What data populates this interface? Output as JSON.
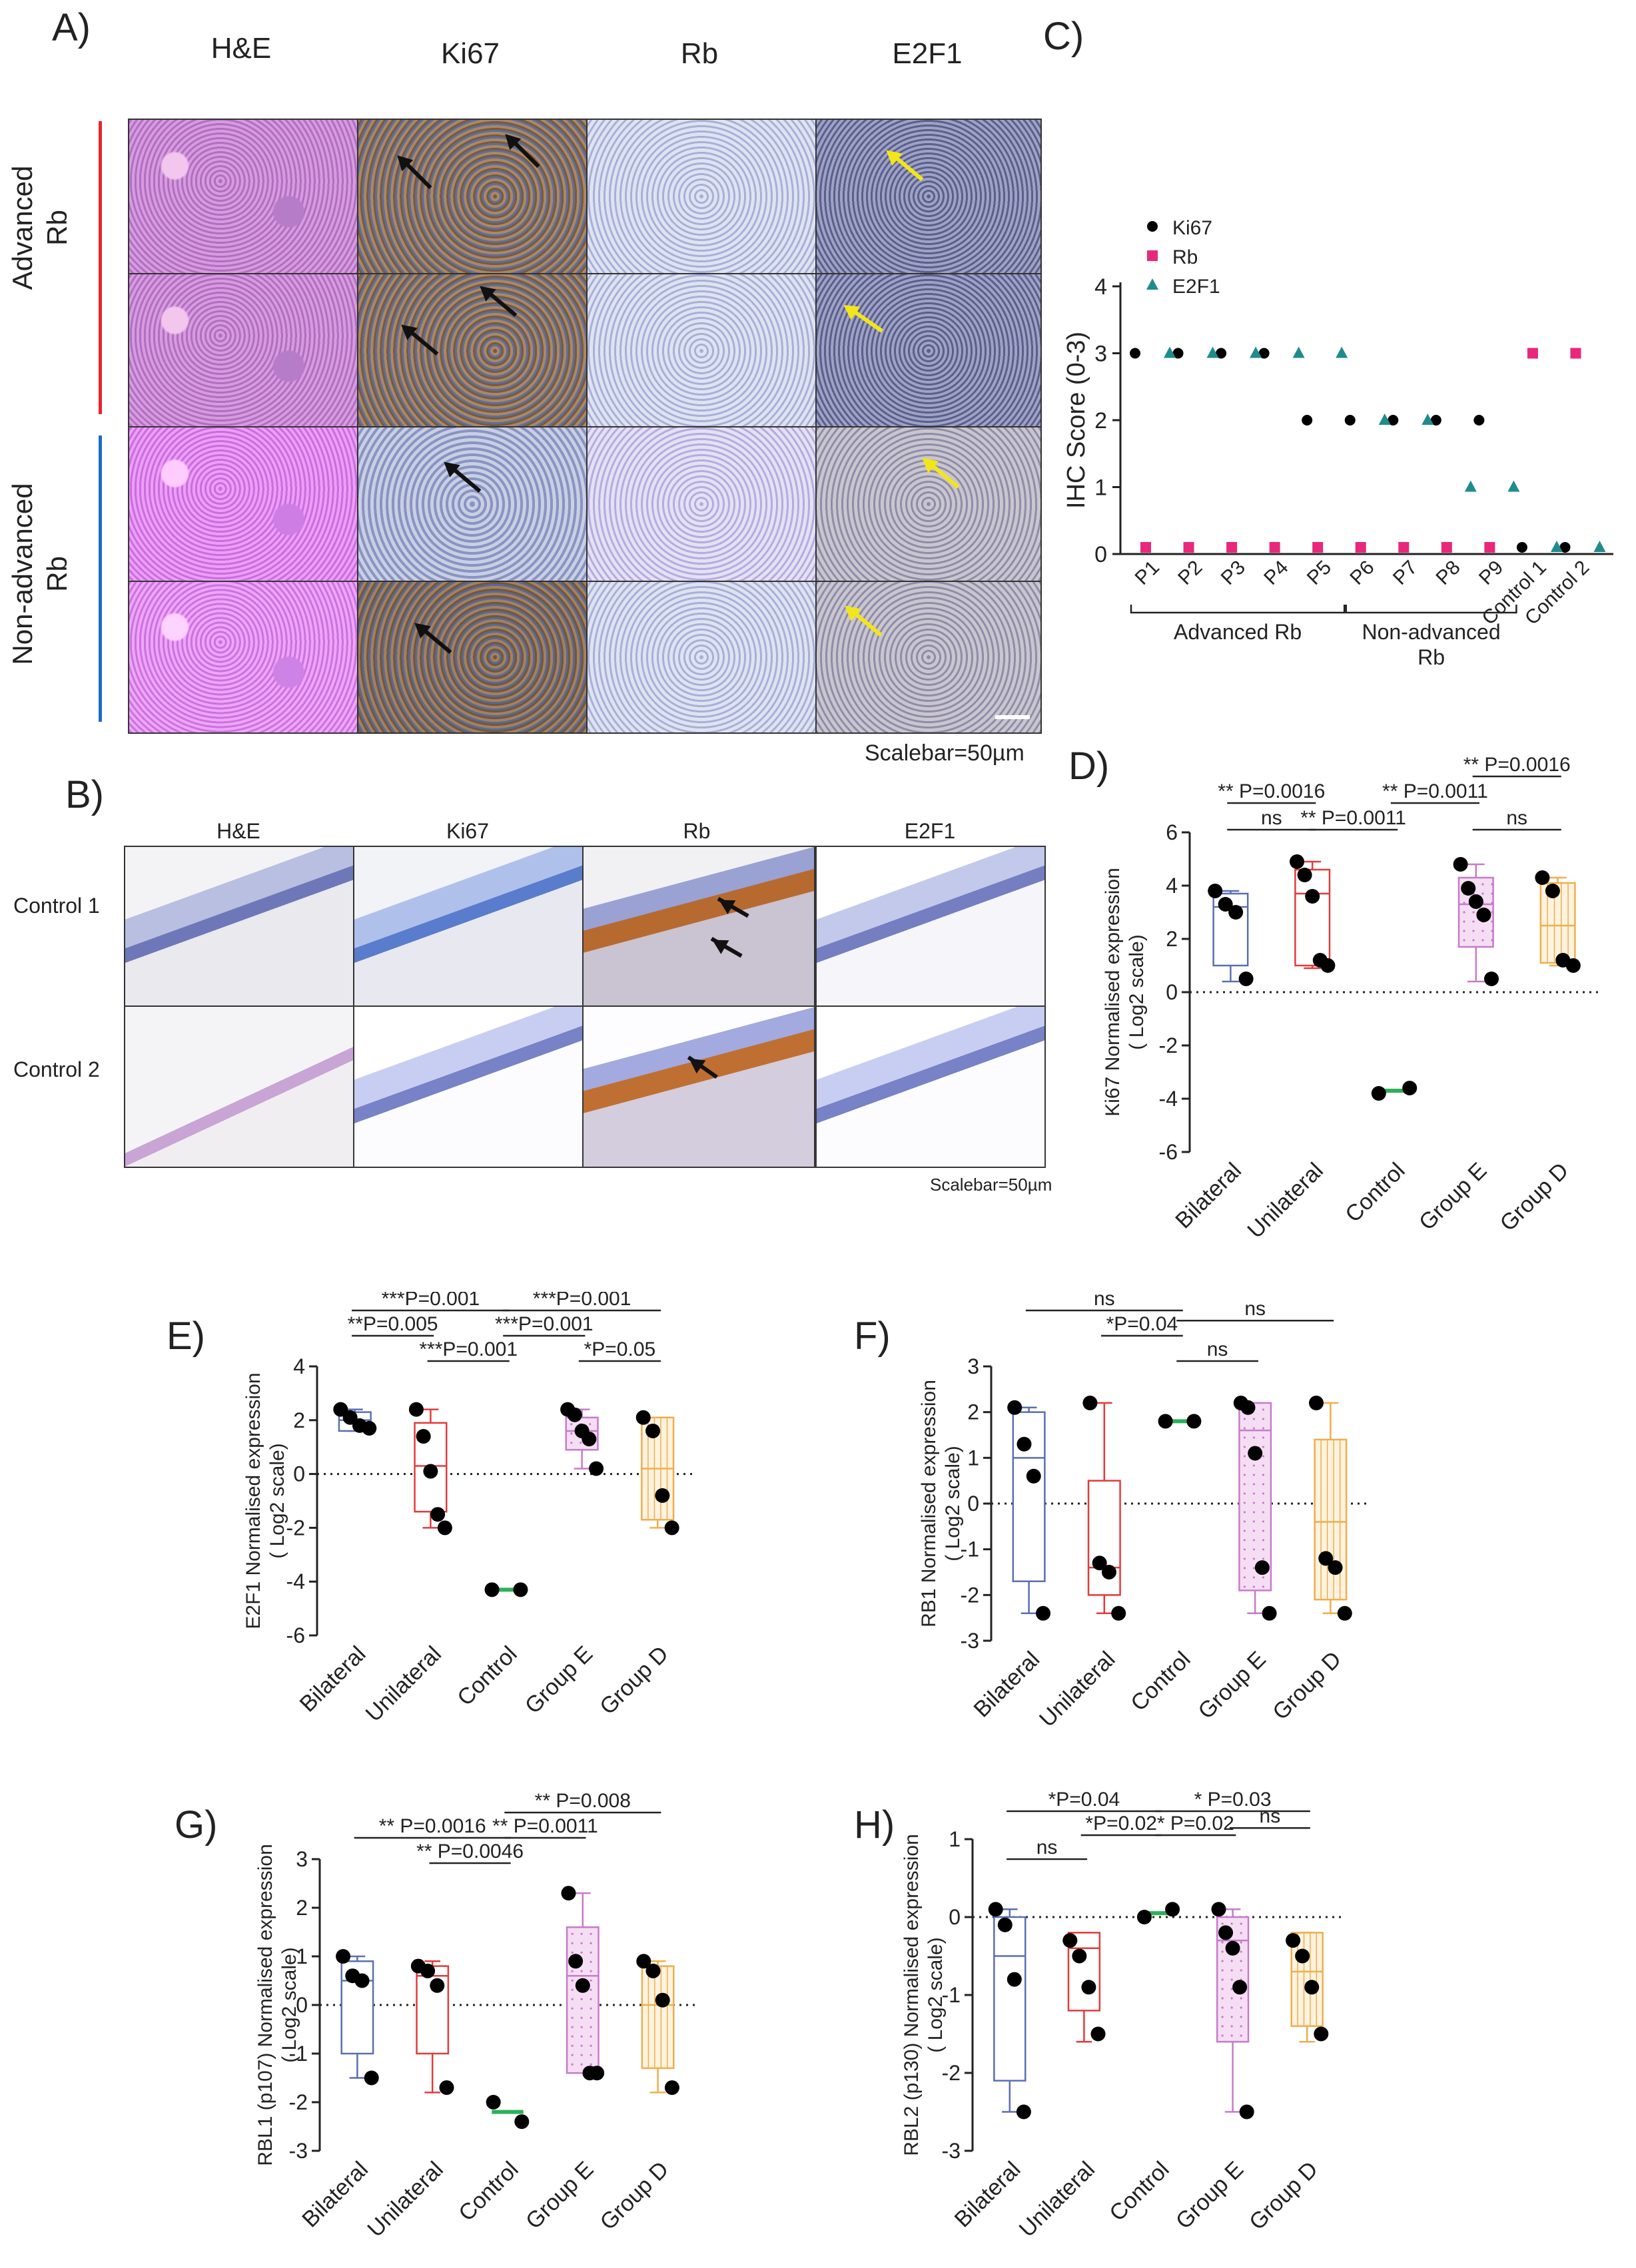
{
  "panelA": {
    "letter": "A)",
    "columns": [
      "H&E",
      "Ki67",
      "Rb",
      "E2F1"
    ],
    "rows": [
      [
        "Advanced",
        "Rb"
      ],
      [
        "Non-advanced",
        "Rb"
      ]
    ],
    "scalebar": "Scalebar=50µm",
    "colors": {
      "advanced": "#e8242e",
      "nonadvanced": "#1e6cc6"
    }
  },
  "panelB": {
    "letter": "B)",
    "columns": [
      "H&E",
      "Ki67",
      "Rb",
      "E2F1"
    ],
    "rows": [
      "Control 1",
      "Control 2"
    ],
    "scalebar": "Scalebar=50µm"
  },
  "chart_data": [
    {
      "panel": "C)",
      "type": "scatter",
      "ylabel": "IHC Score (0-3)",
      "ylim": [
        0,
        4
      ],
      "yticks": [
        0,
        1,
        2,
        3,
        4
      ],
      "categories": [
        "P1",
        "P2",
        "P3",
        "P4",
        "P5",
        "P6",
        "P7",
        "P8",
        "P9",
        "Control 1",
        "Control 2"
      ],
      "groups": [
        {
          "label": [
            "Advanced Rb"
          ],
          "from": "P1",
          "to": "P5"
        },
        {
          "label": [
            "Non-advanced",
            "Rb"
          ],
          "from": "P6",
          "to": "P9"
        }
      ],
      "series": [
        {
          "name": "Ki67",
          "marker": "circle",
          "color": "#000000",
          "values": [
            3,
            3,
            3,
            3,
            2,
            2,
            2,
            2,
            2,
            0.1,
            0.1
          ]
        },
        {
          "name": "Rb",
          "marker": "square",
          "color": "#e8287a",
          "values": [
            0.1,
            0.1,
            0.1,
            0.1,
            0.1,
            0.1,
            0.1,
            0.1,
            0.1,
            3,
            3
          ]
        },
        {
          "name": "E2F1",
          "marker": "triangle",
          "color": "#1f8c8c",
          "values": [
            3,
            3,
            3,
            3,
            3,
            2,
            2,
            1,
            1,
            0.1,
            0.1
          ]
        }
      ]
    },
    {
      "panel": "D)",
      "type": "box",
      "ylabel": [
        "Ki67 Normalised expression",
        "( Log2 scale)"
      ],
      "ylim": [
        -6,
        6
      ],
      "yticks": [
        -6,
        -4,
        -2,
        0,
        2,
        4,
        6
      ],
      "categories": [
        "Bilateral",
        "Unilateral",
        "Control",
        "Group E",
        "Group D"
      ],
      "boxes": [
        {
          "q1": 1.0,
          "median": 3.2,
          "q3": 3.7,
          "min": 0.4,
          "max": 3.8,
          "points": [
            3.8,
            3.3,
            3.0,
            0.5
          ],
          "style": "blue"
        },
        {
          "q1": 1.0,
          "median": 3.7,
          "q3": 4.6,
          "min": 0.9,
          "max": 4.9,
          "points": [
            4.9,
            4.4,
            3.6,
            1.2,
            1.0
          ],
          "style": "red"
        },
        {
          "q1": -3.7,
          "median": -3.7,
          "q3": -3.7,
          "min": -3.8,
          "max": -3.6,
          "points": [
            -3.8,
            -3.6
          ],
          "style": "green"
        },
        {
          "q1": 1.7,
          "median": 3.3,
          "q3": 4.3,
          "min": 0.4,
          "max": 4.8,
          "points": [
            4.8,
            3.9,
            3.4,
            2.9,
            0.5
          ],
          "style": "pink"
        },
        {
          "q1": 1.1,
          "median": 2.5,
          "q3": 4.1,
          "min": 1.0,
          "max": 4.3,
          "points": [
            4.3,
            3.8,
            1.2,
            1.0
          ],
          "style": "orange"
        }
      ],
      "annotations": [
        {
          "text": "** P=0.0016",
          "from": 0,
          "to": 1,
          "level": 1
        },
        {
          "text": "ns",
          "from": 0,
          "to": 1,
          "level": 0
        },
        {
          "text": "** P=0.0011",
          "from": 1,
          "to": 2,
          "level": 0
        },
        {
          "text": "** P=0.0016",
          "from": 3,
          "to": 4,
          "level": 2
        },
        {
          "text": "** P=0.0011",
          "from": 2,
          "to": 3,
          "level": 1
        },
        {
          "text": "ns",
          "from": 3,
          "to": 4,
          "level": 0
        }
      ]
    },
    {
      "panel": "E)",
      "type": "box",
      "ylabel": [
        "E2F1 Normalised expression",
        "( Log2 scale)"
      ],
      "ylim": [
        -6,
        4
      ],
      "yticks": [
        -6,
        -4,
        -2,
        0,
        2,
        4
      ],
      "categories": [
        "Bilateral",
        "Unilateral",
        "Control",
        "Group E",
        "Group D"
      ],
      "boxes": [
        {
          "q1": 1.6,
          "median": 2.0,
          "q3": 2.3,
          "min": 1.6,
          "max": 2.4,
          "points": [
            2.4,
            2.1,
            1.8,
            1.7
          ],
          "style": "blue"
        },
        {
          "q1": -1.4,
          "median": 0.3,
          "q3": 1.9,
          "min": -2.0,
          "max": 2.4,
          "points": [
            2.4,
            1.4,
            0.1,
            -1.5,
            -2.0
          ],
          "style": "red"
        },
        {
          "q1": -4.3,
          "median": -4.3,
          "q3": -4.3,
          "min": -4.3,
          "max": -4.3,
          "points": [
            -4.3,
            -4.3
          ],
          "style": "green"
        },
        {
          "q1": 0.9,
          "median": 1.6,
          "q3": 2.1,
          "min": 0.2,
          "max": 2.4,
          "points": [
            2.4,
            2.2,
            1.6,
            1.3,
            0.2
          ],
          "style": "pink"
        },
        {
          "q1": -1.7,
          "median": 0.2,
          "q3": 2.1,
          "min": -2.0,
          "max": 2.1,
          "points": [
            2.1,
            1.6,
            -0.8,
            -2.0
          ],
          "style": "orange"
        }
      ],
      "annotations": [
        {
          "text": "***P=0.001",
          "from": 0,
          "to": 2,
          "level": 2
        },
        {
          "text": "**P=0.005",
          "from": 0,
          "to": 1,
          "level": 1
        },
        {
          "text": "***P=0.001",
          "from": 1,
          "to": 2,
          "level": 0
        },
        {
          "text": "***P=0.001",
          "from": 2,
          "to": 4,
          "level": 2
        },
        {
          "text": "***P=0.001",
          "from": 2,
          "to": 3,
          "level": 1
        },
        {
          "text": "*P=0.05",
          "from": 3,
          "to": 4,
          "level": 0
        }
      ]
    },
    {
      "panel": "F)",
      "type": "box",
      "ylabel": [
        "RB1 Normalised expression",
        "( Log2 scale)"
      ],
      "ylim": [
        -3,
        3
      ],
      "yticks": [
        -3,
        -2,
        -1,
        0,
        1,
        2,
        3
      ],
      "categories": [
        "Bilateral",
        "Unilateral",
        "Control",
        "Group E",
        "Group D"
      ],
      "boxes": [
        {
          "q1": -1.7,
          "median": 1.0,
          "q3": 2.0,
          "min": -2.4,
          "max": 2.1,
          "points": [
            2.1,
            1.3,
            0.6,
            -2.4
          ],
          "style": "blue"
        },
        {
          "q1": -2.0,
          "median": -1.4,
          "q3": 0.5,
          "min": -2.4,
          "max": 2.2,
          "points": [
            2.2,
            -1.3,
            -1.5,
            -2.4
          ],
          "style": "red"
        },
        {
          "q1": 1.8,
          "median": 1.8,
          "q3": 1.8,
          "min": 1.8,
          "max": 1.8,
          "points": [
            1.8,
            1.8
          ],
          "style": "green"
        },
        {
          "q1": -1.9,
          "median": 1.6,
          "q3": 2.2,
          "min": -2.4,
          "max": 2.2,
          "points": [
            2.2,
            2.1,
            1.1,
            -1.4,
            -2.4
          ],
          "style": "pink"
        },
        {
          "q1": -2.1,
          "median": -0.4,
          "q3": 1.4,
          "min": -2.4,
          "max": 2.2,
          "points": [
            2.2,
            -1.2,
            -1.4,
            -2.4
          ],
          "style": "orange"
        }
      ],
      "annotations": [
        {
          "text": "ns",
          "from": 0,
          "to": 2,
          "level": 2
        },
        {
          "text": "*P=0.04",
          "from": 1,
          "to": 2,
          "level": 1
        },
        {
          "text": "ns",
          "from": 2,
          "to": 3,
          "level": 0
        },
        {
          "text": "ns",
          "from": 2,
          "to": 4,
          "level": 1.6
        }
      ]
    },
    {
      "panel": "G)",
      "type": "box",
      "ylabel": [
        "RBL1 (p107) Normalised expression",
        "( Log2 scale)"
      ],
      "ylim": [
        -3,
        3
      ],
      "yticks": [
        -3,
        -2,
        -1,
        0,
        1,
        2,
        3
      ],
      "categories": [
        "Bilateral",
        "Unilateral",
        "Control",
        "Group E",
        "Group D"
      ],
      "boxes": [
        {
          "q1": -1.0,
          "median": 0.5,
          "q3": 0.9,
          "min": -1.5,
          "max": 1.0,
          "points": [
            1.0,
            0.6,
            0.5,
            -1.5
          ],
          "style": "blue"
        },
        {
          "q1": -1.0,
          "median": 0.6,
          "q3": 0.8,
          "min": -1.8,
          "max": 0.9,
          "points": [
            0.8,
            0.7,
            0.4,
            -1.7
          ],
          "style": "red"
        },
        {
          "q1": -2.2,
          "median": -2.2,
          "q3": -2.2,
          "min": -2.4,
          "max": -2.0,
          "points": [
            -2.0,
            -2.4
          ],
          "style": "green"
        },
        {
          "q1": -1.4,
          "median": 0.6,
          "q3": 1.6,
          "min": -1.4,
          "max": 2.3,
          "points": [
            2.3,
            0.9,
            0.4,
            -1.4,
            -1.4
          ],
          "style": "pink"
        },
        {
          "q1": -1.3,
          "median": 0.0,
          "q3": 0.8,
          "min": -1.8,
          "max": 0.9,
          "points": [
            0.9,
            0.7,
            0.1,
            -1.7
          ],
          "style": "orange"
        }
      ],
      "annotations": [
        {
          "text": "** P=0.0016",
          "from": 0,
          "to": 2,
          "level": 1
        },
        {
          "text": "** P=0.0046",
          "from": 1,
          "to": 2,
          "level": 0
        },
        {
          "text": "** P=0.008",
          "from": 2,
          "to": 4,
          "level": 2
        },
        {
          "text": "** P=0.0011",
          "from": 2,
          "to": 3,
          "level": 1
        }
      ]
    },
    {
      "panel": "H)",
      "type": "box",
      "ylabel": [
        "RBL2 (p130) Normalised expression",
        "( Log2 scale)"
      ],
      "ylim": [
        -3,
        1
      ],
      "yticks": [
        -3,
        -2,
        -1,
        0,
        1
      ],
      "categories": [
        "Bilateral",
        "Unilateral",
        "Control",
        "Group E",
        "Group D"
      ],
      "boxes": [
        {
          "q1": -2.1,
          "median": -0.5,
          "q3": 0.0,
          "min": -2.5,
          "max": 0.1,
          "points": [
            0.1,
            -0.1,
            -0.8,
            -2.5
          ],
          "style": "blue"
        },
        {
          "q1": -1.2,
          "median": -0.4,
          "q3": -0.2,
          "min": -1.6,
          "max": -0.2,
          "points": [
            -0.3,
            -0.5,
            -0.9,
            -1.5
          ],
          "style": "red"
        },
        {
          "q1": 0.05,
          "median": 0.05,
          "q3": 0.05,
          "min": 0.0,
          "max": 0.1,
          "points": [
            0.0,
            0.1
          ],
          "style": "green"
        },
        {
          "q1": -1.6,
          "median": -0.3,
          "q3": 0.0,
          "min": -2.5,
          "max": 0.1,
          "points": [
            0.1,
            -0.2,
            -0.4,
            -0.9,
            -2.5
          ],
          "style": "pink"
        },
        {
          "q1": -1.4,
          "median": -0.7,
          "q3": -0.2,
          "min": -1.6,
          "max": -0.2,
          "points": [
            -0.3,
            -0.5,
            -0.9,
            -1.5
          ],
          "style": "orange"
        }
      ],
      "annotations": [
        {
          "text": "*P=0.04",
          "from": 0,
          "to": 2,
          "level": 2
        },
        {
          "text": "ns",
          "from": 0,
          "to": 1,
          "level": 0
        },
        {
          "text": "*P=0.02",
          "from": 1,
          "to": 2,
          "level": 1
        },
        {
          "text": "* P=0.03",
          "from": 2,
          "to": 4,
          "level": 2
        },
        {
          "text": "* P=0.02",
          "from": 2,
          "to": 3,
          "level": 1
        },
        {
          "text": "ns",
          "from": 3,
          "to": 4,
          "level": 1.3
        }
      ]
    }
  ],
  "styles": {
    "blue": {
      "stroke": "#5a6fb2",
      "fill": "#ffffff"
    },
    "red": {
      "stroke": "#e23b3b",
      "fill": "#ffffff"
    },
    "green": {
      "stroke": "#2bb15a",
      "fill": "#ffffff"
    },
    "pink": {
      "stroke": "#c77bc9",
      "fill": "#f5def3"
    },
    "orange": {
      "stroke": "#eeae4e",
      "fill": "#fff3df"
    }
  }
}
